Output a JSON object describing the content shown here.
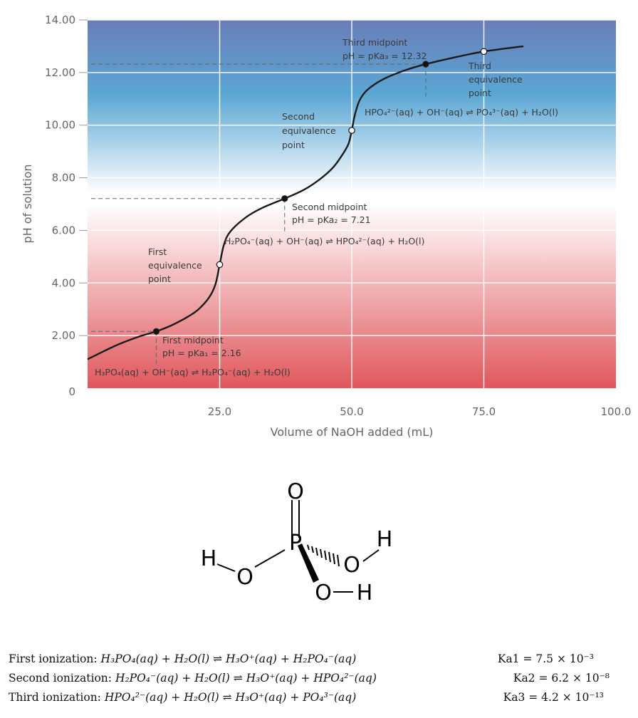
{
  "chart_data": {
    "type": "line",
    "xlabel": "Volume of NaOH added (mL)",
    "ylabel": "pH of solution",
    "xlim": [
      0,
      100
    ],
    "ylim": [
      0,
      14
    ],
    "x_ticks": [
      "25.0",
      "50.0",
      "75.0",
      "100.0"
    ],
    "y_ticks": [
      "0",
      "2.00",
      "4.00",
      "6.00",
      "8.00",
      "10.00",
      "12.00",
      "14.00"
    ],
    "grid": true,
    "background": {
      "top": "#6b7db8",
      "upper": "#5aa6d3",
      "middle": "#ffffff",
      "bottom": "#e0575c"
    },
    "curve_color": "#1a1a1a",
    "series": [
      {
        "x": [
          0,
          3,
          6,
          10,
          13,
          16,
          19,
          21,
          23,
          24.2,
          25,
          25.8,
          27,
          30,
          33,
          37.3,
          41,
          44,
          46.5,
          48.3,
          49.4,
          50,
          50.6,
          51.5,
          53,
          56,
          60,
          64,
          70,
          75,
          82.5
        ],
        "y": [
          1.1,
          1.4,
          1.68,
          1.98,
          2.16,
          2.4,
          2.72,
          3.0,
          3.45,
          3.95,
          4.7,
          5.45,
          5.95,
          6.5,
          6.85,
          7.21,
          7.55,
          7.95,
          8.4,
          8.9,
          9.3,
          9.8,
          10.4,
          10.95,
          11.35,
          11.75,
          12.08,
          12.32,
          12.6,
          12.8,
          13.0
        ]
      }
    ],
    "points": [
      {
        "x": 13,
        "y": 2.16,
        "kind": "midpoint",
        "filled": true
      },
      {
        "x": 25,
        "y": 4.7,
        "kind": "equivalence",
        "filled": false
      },
      {
        "x": 37.3,
        "y": 7.21,
        "kind": "midpoint",
        "filled": true
      },
      {
        "x": 50,
        "y": 9.8,
        "kind": "equivalence",
        "filled": false
      },
      {
        "x": 64,
        "y": 12.32,
        "kind": "midpoint",
        "filled": true
      },
      {
        "x": 75,
        "y": 12.8,
        "kind": "equivalence",
        "filled": false
      }
    ],
    "annotations": {
      "first_midpoint": [
        "First midpoint",
        "pH = pKa₁ = 2.16"
      ],
      "first_reaction": "H₃PO₄(aq) + OH⁻(aq) ⇌ H₂PO₄⁻(aq) + H₂O(l)",
      "first_equivalence": [
        "First",
        "equivalence",
        "point"
      ],
      "second_midpoint": [
        "Second midpoint",
        "pH = pKa₂ = 7.21"
      ],
      "second_reaction": "H₂PO₄⁻(aq) + OH⁻(aq) ⇌ HPO₄²⁻(aq) + H₂O(l)",
      "second_equivalence": [
        "Second",
        "equivalence",
        "point"
      ],
      "third_midpoint": [
        "Third midpoint",
        "pH = pKa₃ = 12.32"
      ],
      "third_reaction": "HPO₄²⁻(aq) + OH⁻(aq) ⇌ PO₄³⁻(aq) + H₂O(l)",
      "third_equivalence": [
        "Third",
        "equivalence",
        "point"
      ]
    }
  },
  "structure": {
    "atoms": {
      "o_top": "O",
      "p": "P",
      "o_left": "O",
      "h_left": "H",
      "o_right": "O",
      "h_right": "H",
      "o_bottom": "O",
      "h_bottom": "H"
    }
  },
  "equations": [
    {
      "label": "First ionization:",
      "reaction": "H₃PO₄(aq) + H₂O(l) ⇌ H₃O⁺(aq) + H₂PO₄⁻(aq)",
      "k": "Ka1 = 7.5 × 10⁻³"
    },
    {
      "label": "Second ionization:",
      "reaction": "H₂PO₄⁻(aq) + H₂O(l) ⇌ H₃O⁺(aq) + HPO₄²⁻(aq)",
      "k": "Ka2 = 6.2 × 10⁻⁸"
    },
    {
      "label": "Third ionization:",
      "reaction": "HPO₄²⁻(aq) + H₂O(l) ⇌ H₃O⁺(aq) + PO₄³⁻(aq)",
      "k": "Ka3 = 4.2 × 10⁻¹³"
    }
  ]
}
